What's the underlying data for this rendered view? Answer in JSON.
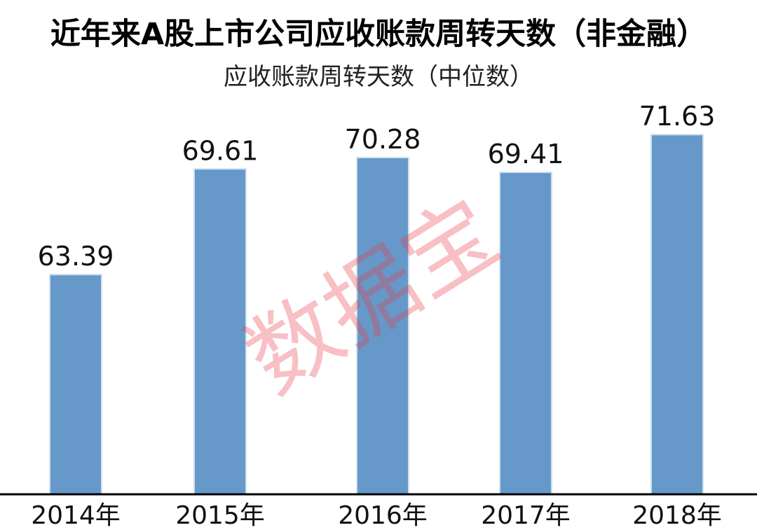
{
  "title": "近年来A股上市公司应收账款周转天数（非金融）",
  "subtitle": "应收账款周转天数（中位数）",
  "watermark": "数据宝",
  "colors": {
    "bar": "#6699c9",
    "bar_edge": "#cfe0f0",
    "axis": "#000000",
    "text": "#111111"
  },
  "chart_data": {
    "type": "bar",
    "title": "近年来A股上市公司应收账款周转天数（非金融）",
    "subtitle": "应收账款周转天数（中位数）",
    "categories": [
      "2014年",
      "2015年",
      "2016年",
      "2017年",
      "2018年"
    ],
    "values": [
      63.39,
      69.61,
      70.28,
      69.41,
      71.63
    ],
    "data_labels": [
      "63.39",
      "69.61",
      "70.28",
      "69.41",
      "71.63"
    ],
    "xlabel": "",
    "ylabel": "",
    "ylim": [
      50.5,
      73.0
    ],
    "grid": false,
    "legend": "none"
  }
}
